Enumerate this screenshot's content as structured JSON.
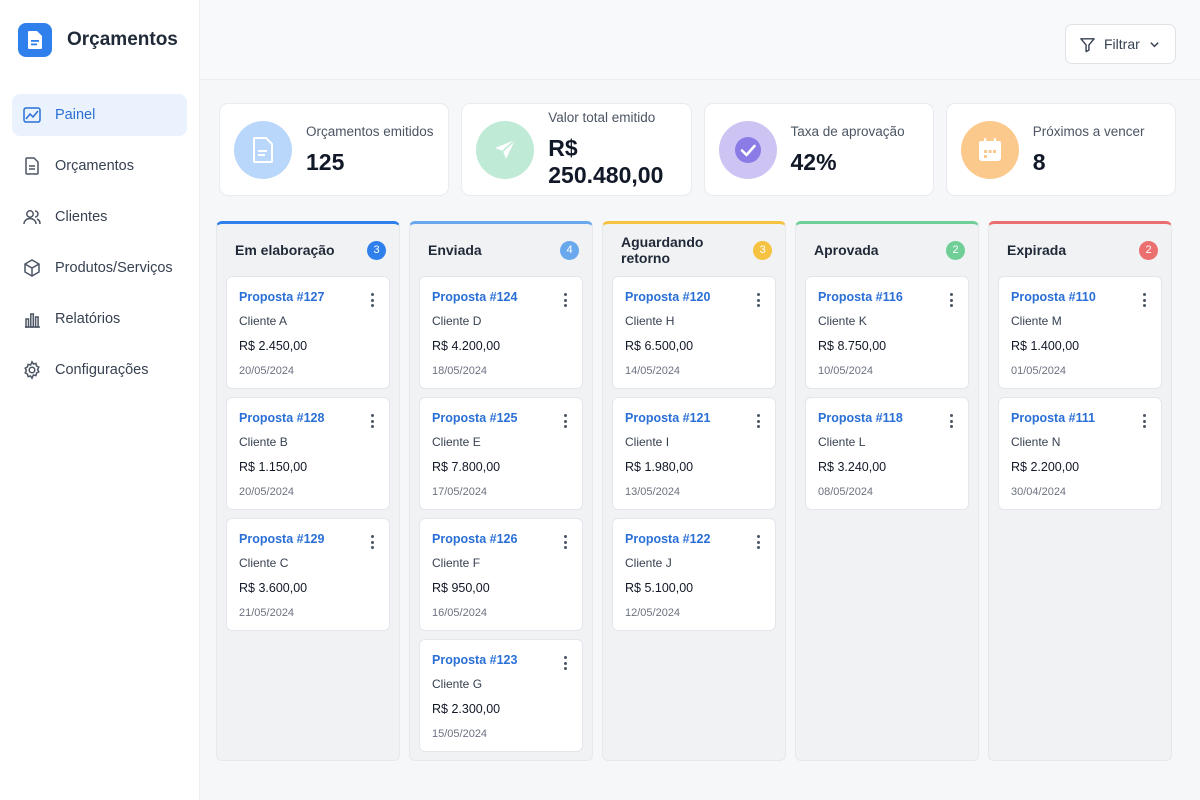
{
  "brand": {
    "title": "Orçamentos",
    "icon": "document-icon",
    "color": "#2f80ed"
  },
  "nav": [
    {
      "label": "Painel",
      "icon": "chart-icon",
      "active": true
    },
    {
      "label": "Orçamentos",
      "icon": "document-icon",
      "active": false
    },
    {
      "label": "Clientes",
      "icon": "users-icon",
      "active": false
    },
    {
      "label": "Produtos/Serviços",
      "icon": "box-icon",
      "active": false
    },
    {
      "label": "Relatórios",
      "icon": "bar-chart-icon",
      "active": false
    },
    {
      "label": "Configurações",
      "icon": "gear-icon",
      "active": false
    }
  ],
  "topbar": {
    "filter_label": "Filtrar"
  },
  "stats": [
    {
      "label": "Orçamentos emitidos",
      "value": "125",
      "icon": "document-icon",
      "bg": "#b9d6fb"
    },
    {
      "label": "Valor total emitido",
      "value": "R$ 250.480,00",
      "icon": "send-icon",
      "bg": "#bfead6"
    },
    {
      "label": "Taxa de aprovação",
      "value": "42%",
      "icon": "check-circle-icon",
      "bg": "#cdc4f3"
    },
    {
      "label": "Próximos a vencer",
      "value": "8",
      "icon": "calendar-icon",
      "bg": "#fcc98d"
    }
  ],
  "columns": [
    {
      "title": "Em elaboração",
      "count": "3",
      "color": "#2f80ed",
      "cards": [
        {
          "title": "Proposta #127",
          "client": "Cliente A",
          "value": "R$ 2.450,00",
          "date": "20/05/2024"
        },
        {
          "title": "Proposta #128",
          "client": "Cliente B",
          "value": "R$ 1.150,00",
          "date": "20/05/2024"
        },
        {
          "title": "Proposta #129",
          "client": "Cliente C",
          "value": "R$ 3.600,00",
          "date": "21/05/2024"
        }
      ]
    },
    {
      "title": "Enviada",
      "count": "4",
      "color": "#6aa8ee",
      "cards": [
        {
          "title": "Proposta #124",
          "client": "Cliente D",
          "value": "R$ 4.200,00",
          "date": "18/05/2024"
        },
        {
          "title": "Proposta #125",
          "client": "Cliente E",
          "value": "R$ 7.800,00",
          "date": "17/05/2024"
        },
        {
          "title": "Proposta #126",
          "client": "Cliente F",
          "value": "R$ 950,00",
          "date": "16/05/2024"
        },
        {
          "title": "Proposta #123",
          "client": "Cliente G",
          "value": "R$ 2.300,00",
          "date": "15/05/2024"
        }
      ]
    },
    {
      "title": "Aguardando retorno",
      "count": "3",
      "color": "#f5c242",
      "cards": [
        {
          "title": "Proposta #120",
          "client": "Cliente H",
          "value": "R$ 6.500,00",
          "date": "14/05/2024"
        },
        {
          "title": "Proposta #121",
          "client": "Cliente I",
          "value": "R$ 1.980,00",
          "date": "13/05/2024"
        },
        {
          "title": "Proposta #122",
          "client": "Cliente J",
          "value": "R$ 5.100,00",
          "date": "12/05/2024"
        }
      ]
    },
    {
      "title": "Aprovada",
      "count": "2",
      "color": "#6fcf97",
      "cards": [
        {
          "title": "Proposta #116",
          "client": "Cliente K",
          "value": "R$ 8.750,00",
          "date": "10/05/2024"
        },
        {
          "title": "Proposta #118",
          "client": "Cliente L",
          "value": "R$ 3.240,00",
          "date": "08/05/2024"
        }
      ]
    },
    {
      "title": "Expirada",
      "count": "2",
      "color": "#eb6f6f",
      "cards": [
        {
          "title": "Proposta #110",
          "client": "Cliente M",
          "value": "R$ 1.400,00",
          "date": "01/05/2024"
        },
        {
          "title": "Proposta #111",
          "client": "Cliente N",
          "value": "R$ 2.200,00",
          "date": "30/04/2024"
        }
      ]
    }
  ]
}
